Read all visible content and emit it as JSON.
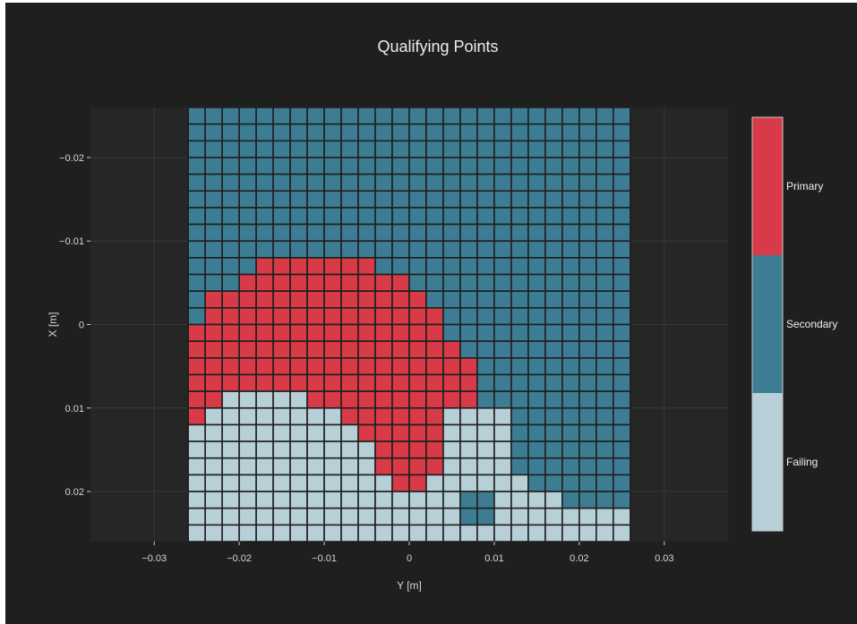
{
  "chart_data": {
    "type": "heatmap",
    "title": "Qualifying Points",
    "xlabel": "Y [m]",
    "ylabel": "X [m]",
    "x_ticks": [
      "−0.03",
      "−0.02",
      "−0.01",
      "0",
      "0.01",
      "0.02",
      "0.03"
    ],
    "x_tick_values": [
      -0.03,
      -0.02,
      -0.01,
      0,
      0.01,
      0.02,
      0.03
    ],
    "y_ticks": [
      "−0.02",
      "−0.01",
      "0",
      "0.01",
      "0.02"
    ],
    "y_tick_values": [
      -0.02,
      -0.01,
      0,
      0.01,
      0.02
    ],
    "xlim": [
      -0.0375,
      0.0375
    ],
    "ylim": [
      -0.026,
      0.026
    ],
    "y_axis_reversed": true,
    "grid": true,
    "legend_position": "right",
    "categories": [
      "Primary",
      "Secondary",
      "Failing"
    ],
    "colors": {
      "Primary": "#d93a48",
      "Secondary": "#3d7d93",
      "Failing": "#b7cfd6",
      "background": "#1f1f1f",
      "plot_bg": "#262626",
      "grid": "#383838"
    },
    "grid_cells": {
      "x_start": -0.025,
      "x_step": 0.002,
      "y_start": -0.025,
      "y_step": 0.002,
      "code": "P = Primary, S = Secondary, F = Failing; rows top (X=-0.025) to bottom (X=0.025), columns left (Y=-0.025) to right (Y=0.025)",
      "rows": [
        "SSSSSSSSSSSSSSSSSSSSSSSSSS",
        "SSSSSSSSSSSSSSSSSSSSSSSSSS",
        "SSSSSSSSSSSSSSSSSSSSSSSSSS",
        "SSSSSSSSSSSSSSSSSSSSSSSSSS",
        "SSSSSSSSSSSSSSSSSSSSSSSSSS",
        "SSSSSSSSSSSSSSSSSSSSSSSSSS",
        "SSSSSSSSSSSSSSSSSSSSSSSSSS",
        "SSSSSSSSSSSSSSSSSSSSSSSSSS",
        "SSSSSSSSSSSSSSSSSSSSSSSSSS",
        "SSSSPPPPPPPSSSSSSSSSSSSSSS",
        "SSSPPPPPPPPPPSSSSSSSSSSSSS",
        "SPPPPPPPPPPPPPSSSSSSSSSSSS",
        "SPPPPPPPPPPPPPPSSSSSSSSSSS",
        "PPPPPPPPPPPPPPPSSSSSSSSSSS",
        "PPPPPPPPPPPPPPPPSSSSSSSSSS",
        "PPPPPPPPPPPPPPPPPSSSSSSSSS",
        "PPPPPPPPPPPPPPPPPSSSSSSSSS",
        "PPFFFFFPPPPPPPPPPSSSSSSSSS",
        "PFFFFFFFFPPPPPPFFFFSSSSSSS",
        "FFFFFFFFFFPPPPPFFFFSSSSSSS",
        "FFFFFFFFFFFPPPPFFFFSSSSSSS",
        "FFFFFFFFFFFPPPPFFFFSSSSSSS",
        "FFFFFFFFFFFFPPFFFFFFSSSSSS",
        "FFFFFFFFFFFFFFFFSSFFFFSSSS",
        "FFFFFFFFFFFFFFFFSSFFFFFFFF",
        "FFFFFFFFFFFFFFFFFFFFFFFFFF"
      ]
    }
  }
}
